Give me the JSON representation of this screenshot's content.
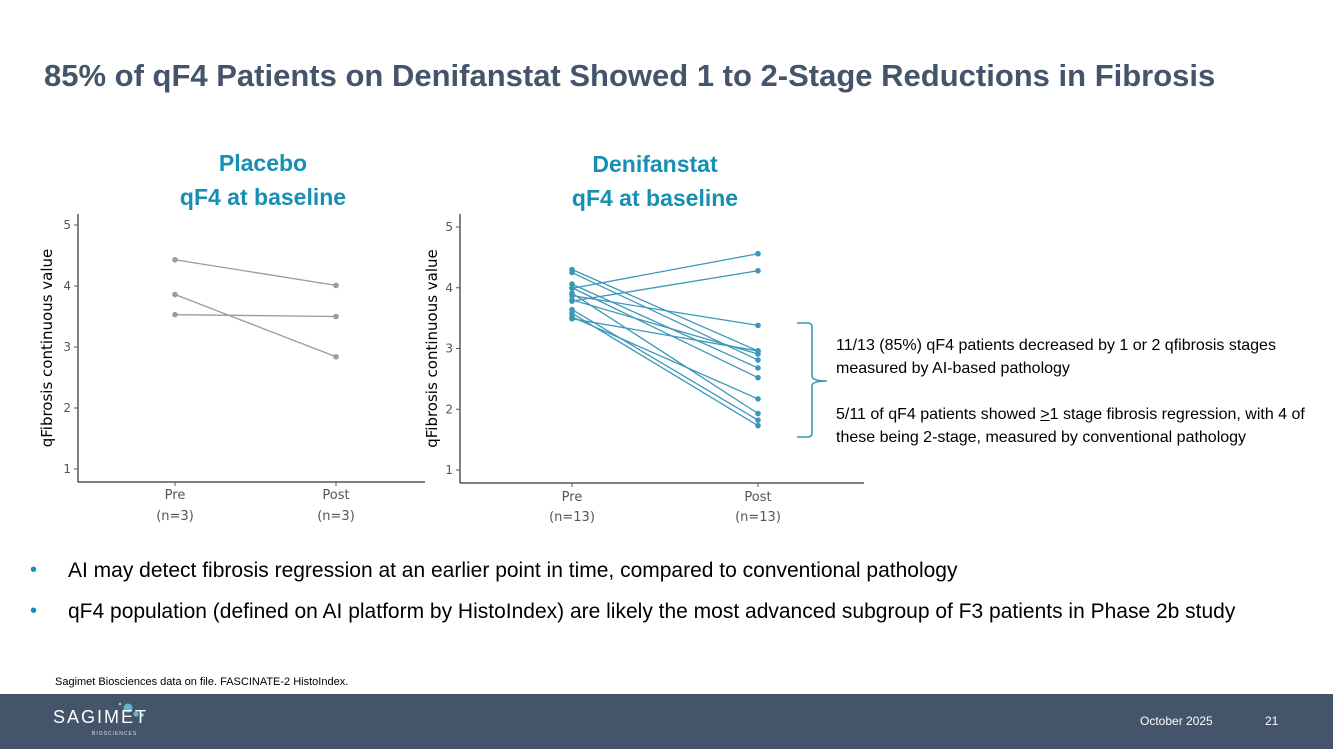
{
  "title": "85% of qF4 Patients on Denifanstat Showed 1 to 2-Stage Reductions in Fibrosis",
  "chart_data": [
    {
      "type": "line",
      "title_lines": [
        "Placebo",
        "qF4 at baseline"
      ],
      "ylabel": "qFibrosis continuous value",
      "ylim": [
        1,
        5
      ],
      "yticks": [
        "1",
        "2",
        "3",
        "4",
        "5"
      ],
      "categories": [
        "Pre",
        "Post"
      ],
      "category_counts": [
        "(n=3)",
        "(n=3)"
      ],
      "color": "#9b9b9b",
      "series": [
        {
          "values": [
            4.43,
            4.01
          ]
        },
        {
          "values": [
            3.86,
            2.84
          ]
        },
        {
          "values": [
            3.53,
            3.5
          ]
        }
      ]
    },
    {
      "type": "line",
      "title_lines": [
        "Denifanstat",
        "qF4 at baseline"
      ],
      "ylabel": "qFibrosis continuous value",
      "ylim": [
        1,
        5
      ],
      "yticks": [
        "1",
        "2",
        "3",
        "4",
        "5"
      ],
      "categories": [
        "Pre",
        "Post"
      ],
      "category_counts": [
        "(n=13)",
        "(n=13)"
      ],
      "color": "#3b97b8",
      "series": [
        {
          "values": [
            4.3,
            2.96
          ]
        },
        {
          "values": [
            4.25,
            2.81
          ]
        },
        {
          "values": [
            4.06,
            2.68
          ]
        },
        {
          "values": [
            4.0,
            2.52
          ]
        },
        {
          "values": [
            3.99,
            4.56
          ]
        },
        {
          "values": [
            3.91,
            1.93
          ]
        },
        {
          "values": [
            3.87,
            3.38
          ]
        },
        {
          "values": [
            3.8,
            2.91
          ]
        },
        {
          "values": [
            3.78,
            4.28
          ]
        },
        {
          "values": [
            3.64,
            1.82
          ]
        },
        {
          "values": [
            3.58,
            1.73
          ]
        },
        {
          "values": [
            3.52,
            2.17
          ]
        },
        {
          "values": [
            3.49,
            2.96
          ]
        }
      ]
    }
  ],
  "annotation": {
    "line1": "11/13 (85%) qF4 patients decreased by 1 or 2 qfibrosis stages measured by AI-based pathology",
    "line2_prefix": "5/11 of qF4 patients showed ",
    "line2_ge": ">",
    "line2_suffix": "1 stage fibrosis regression, with 4 of these being 2-stage, measured by conventional pathology"
  },
  "bullets": [
    "AI may detect fibrosis regression at an earlier point in time, compared to conventional pathology",
    "qF4 population (defined on AI platform by HistoIndex) are likely the most advanced subgroup of F3 patients in Phase 2b study"
  ],
  "bullet_glyph": "•",
  "source": "Sagimet Biosciences data on file. FASCINATE-2 HistoIndex.",
  "footer": {
    "logo": "SAGIMET",
    "logo_sub": "BIOSCIENCES",
    "date": "October 2025",
    "page": "21"
  },
  "colors": {
    "title": "#44546a",
    "accent": "#168fb4",
    "footer_bg": "#44546a"
  }
}
